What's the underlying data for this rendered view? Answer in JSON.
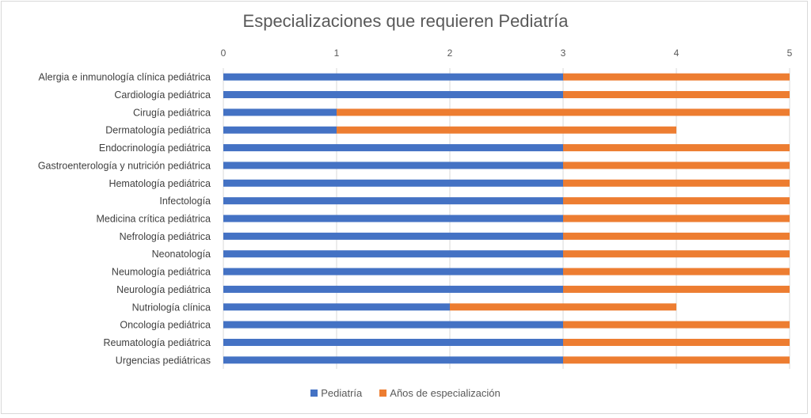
{
  "chart_data": {
    "type": "bar",
    "orientation": "horizontal",
    "stacked": true,
    "title": "Especializaciones que requieren Pediatría",
    "xlabel": "",
    "ylabel": "",
    "xlim": [
      0,
      5
    ],
    "xticks": [
      "0",
      "1",
      "2",
      "3",
      "4",
      "5"
    ],
    "grid": true,
    "legend_position": "bottom",
    "categories": [
      "Alergia e inmunología clínica pediátrica",
      "Cardiología pediátrica",
      "Cirugía pediátrica",
      "Dermatología pediátrica",
      "Endocrinología pediátrica",
      "Gastroenterología y nutrición pediátrica",
      "Hematología pediátrica",
      "Infectología",
      "Medicina crítica pediátrica",
      "Nefrología pediátrica",
      "Neonatología",
      "Neumología pediátrica",
      "Neurología pediátrica",
      "Nutriología clínica",
      "Oncología pediátrica",
      "Reumatología pediátrica",
      "Urgencias pediátricas"
    ],
    "series": [
      {
        "name": "Pediatría",
        "color": "#4472c4",
        "values": [
          3,
          3,
          1,
          1,
          3,
          3,
          3,
          3,
          3,
          3,
          3,
          3,
          3,
          2,
          3,
          3,
          3
        ]
      },
      {
        "name": "Años de especialización",
        "color": "#ed7d31",
        "values": [
          2,
          2,
          4,
          3,
          2,
          2,
          2,
          2,
          2,
          2,
          2,
          2,
          2,
          2,
          2,
          2,
          2
        ]
      }
    ]
  }
}
